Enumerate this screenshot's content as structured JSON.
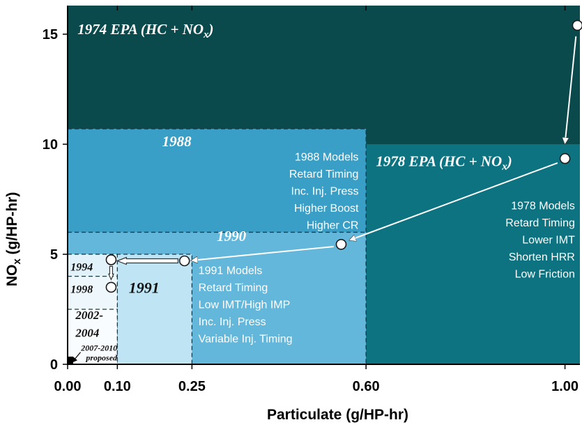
{
  "chart_data": {
    "type": "scatter",
    "xlabel": "Particulate (g/HP-hr)",
    "ylabel_main": "NO",
    "ylabel_sub": "x",
    "ylabel_tail": " (g/HP-hr)",
    "xlim": [
      0,
      1.03
    ],
    "ylim": [
      0,
      16.3
    ],
    "x_ticks": [
      {
        "value": 0.0,
        "label": "0.00"
      },
      {
        "value": 0.1,
        "label": "0.10"
      },
      {
        "value": 0.25,
        "label": "0.25"
      },
      {
        "value": 0.6,
        "label": "0.60"
      },
      {
        "value": 1.0,
        "label": "1.00"
      }
    ],
    "y_ticks": [
      {
        "value": 0,
        "label": "0"
      },
      {
        "value": 5,
        "label": "5"
      },
      {
        "value": 10,
        "label": "10"
      },
      {
        "value": 15,
        "label": "15"
      }
    ],
    "regions": [
      {
        "name": "region-1974",
        "x": [
          0,
          1.03
        ],
        "y": [
          0,
          16.3
        ],
        "color": "#0b4a4c",
        "dashed": false
      },
      {
        "name": "region-1978",
        "x": [
          0,
          1.03
        ],
        "y": [
          0,
          10.0
        ],
        "color": "#0d7381",
        "dashed": false
      },
      {
        "name": "region-1988",
        "x": [
          0,
          0.6
        ],
        "y": [
          0,
          10.7
        ],
        "color": "#3a9fc6",
        "dashed": true
      },
      {
        "name": "region-1990",
        "x": [
          0,
          0.6
        ],
        "y": [
          0,
          6.0
        ],
        "color": "#63b7da",
        "dashed": true
      },
      {
        "name": "region-1991",
        "x": [
          0,
          0.25
        ],
        "y": [
          0,
          5.0
        ],
        "color": "#bfe4f4",
        "dashed": true
      },
      {
        "name": "region-1994",
        "x": [
          0,
          0.1
        ],
        "y": [
          0,
          5.0
        ],
        "color": "#e2f2fa",
        "dashed": true
      },
      {
        "name": "region-1998",
        "x": [
          0,
          0.1
        ],
        "y": [
          0,
          4.0
        ],
        "color": "#eef8fc",
        "dashed": true
      },
      {
        "name": "region-2002",
        "x": [
          0,
          0.1
        ],
        "y": [
          0,
          2.5
        ],
        "color": "#f9fcfe",
        "dashed": true
      }
    ],
    "region_labels": [
      {
        "name": "label-1974",
        "text": "1974 EPA (HC + NO",
        "sub": "x",
        "tail": ")",
        "x": 0.02,
        "y": 15.0,
        "size": 21,
        "dark": false
      },
      {
        "name": "label-1978",
        "text": "1978 EPA (HC + NO",
        "sub": "x",
        "tail": ")",
        "x": 0.62,
        "y": 9.0,
        "size": 21,
        "dark": false
      },
      {
        "name": "label-1988",
        "text": "1988",
        "x": 0.19,
        "y": 9.9,
        "size": 21,
        "dark": false
      },
      {
        "name": "label-1990",
        "text": "1990",
        "x": 0.3,
        "y": 5.6,
        "size": 21,
        "dark": false
      },
      {
        "name": "label-1991",
        "text": "1991",
        "x": 0.123,
        "y": 3.25,
        "size": 22,
        "dark": true
      },
      {
        "name": "label-1994",
        "text": "1994",
        "x": 0.006,
        "y": 4.25,
        "size": 16,
        "dark": true
      },
      {
        "name": "label-1998",
        "text": "1998",
        "x": 0.006,
        "y": 3.25,
        "size": 16,
        "dark": true
      },
      {
        "name": "label-2002",
        "text": "2002-",
        "x": 0.016,
        "y": 2.05,
        "size": 17,
        "dark": true
      },
      {
        "name": "label-2004",
        "text": "2004",
        "x": 0.016,
        "y": 1.25,
        "size": 17,
        "dark": true
      },
      {
        "name": "label-2007",
        "text": "2007-2010",
        "x": 0.027,
        "y": 0.62,
        "size": 12,
        "dark": true
      },
      {
        "name": "label-proposed",
        "text": "proposed",
        "x": 0.037,
        "y": 0.18,
        "size": 12,
        "dark": true
      }
    ],
    "annotations": [
      {
        "name": "annot-1988-models",
        "anchor": "end",
        "x": 0.585,
        "dark": false,
        "lines": [
          "1988 Models",
          "Retard Timing",
          "Inc. Inj. Press",
          "Higher Boost",
          "Higher CR"
        ],
        "y_start": 9.25
      },
      {
        "name": "annot-1978-models",
        "anchor": "end",
        "x": 1.02,
        "dark": false,
        "lines": [
          "1978 Models",
          "Retard Timing",
          "Lower IMT",
          "Shorten HRR",
          "Low Friction"
        ],
        "y_start": 7.05
      },
      {
        "name": "annot-1991-models",
        "anchor": "start",
        "x": 0.263,
        "dark": false,
        "lines": [
          "1991 Models",
          "Retard Timing",
          "Low IMT/High IMP",
          "Inc. Inj. Press",
          "Variable Inj. Timing"
        ],
        "y_start": 4.1
      }
    ],
    "points": [
      {
        "name": "point-1974",
        "x": 1.025,
        "y": 15.4
      },
      {
        "name": "point-1978",
        "x": 1.0,
        "y": 9.35
      },
      {
        "name": "point-1988",
        "x": 0.55,
        "y": 5.45
      },
      {
        "name": "point-1991",
        "x": 0.235,
        "y": 4.7
      },
      {
        "name": "point-1994",
        "x": 0.0875,
        "y": 4.75
      },
      {
        "name": "point-1998",
        "x": 0.0875,
        "y": 3.5
      }
    ],
    "arrows": [
      {
        "name": "arrow-1974-1978",
        "from": [
          1.022,
          14.9
        ],
        "to": [
          1.0,
          10.05
        ],
        "style": "thin"
      },
      {
        "name": "arrow-1978-1988",
        "from": [
          0.985,
          9.15
        ],
        "to": [
          0.568,
          5.65
        ],
        "style": "thin"
      },
      {
        "name": "arrow-1988-1991",
        "from": [
          0.535,
          5.35
        ],
        "to": [
          0.25,
          4.72
        ],
        "style": "thin"
      },
      {
        "name": "arrow-1991-1994",
        "from": [
          0.222,
          4.7
        ],
        "to": [
          0.1,
          4.7
        ],
        "style": "hollow"
      },
      {
        "name": "arrow-1994-1998",
        "from": [
          0.0875,
          4.45
        ],
        "to": [
          0.0875,
          3.85
        ],
        "style": "hollow-small"
      },
      {
        "name": "arrow-2007",
        "from": [
          0.026,
          0.55
        ],
        "to": [
          0.01,
          0.12
        ],
        "style": "thin-dark"
      }
    ],
    "colors": {
      "axis": "#000000",
      "point_fill": "#ffffff",
      "point_stroke": "#1a1a1a",
      "arrow": "#ffffff",
      "dash": "#1a3a4a"
    }
  }
}
